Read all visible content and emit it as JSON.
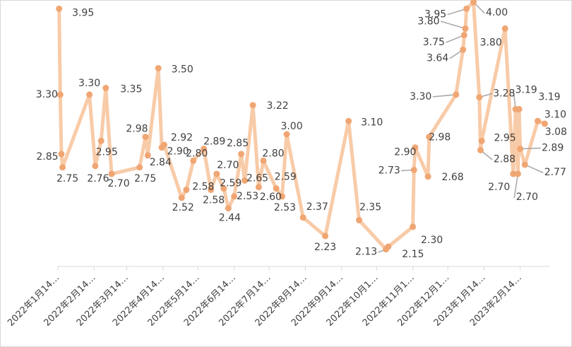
{
  "chart_data": {
    "type": "line",
    "x": [
      "2022-01-15",
      "2022-01-16",
      "2022-01-17",
      "2022-01-18",
      "2022-02-10",
      "2022-02-15",
      "2022-02-20",
      "2022-02-24",
      "2022-03-01",
      "2022-03-25",
      "2022-03-30",
      "2022-04-01",
      "2022-04-10",
      "2022-04-13",
      "2022-04-15",
      "2022-04-30",
      "2022-05-04",
      "2022-05-10",
      "2022-05-19",
      "2022-05-25",
      "2022-05-30",
      "2022-06-05",
      "2022-06-09",
      "2022-06-14",
      "2022-06-20",
      "2022-06-23",
      "2022-06-30",
      "2022-07-05",
      "2022-07-09",
      "2022-07-20",
      "2022-07-25",
      "2022-07-29",
      "2022-08-12",
      "2022-08-31",
      "2022-09-20",
      "2022-09-29",
      "2022-10-22",
      "2022-10-24",
      "2022-11-14",
      "2022-11-15",
      "2022-11-16",
      "2022-11-27",
      "2022-11-28",
      "2022-12-21",
      "2022-12-27",
      "2022-12-28",
      "2022-12-29",
      "2022-12-30",
      "2023-01-05",
      "2023-01-10",
      "2023-01-11",
      "2023-01-12",
      "2023-02-01",
      "2023-02-08",
      "2023-02-10",
      "2023-02-12",
      "2023-02-13",
      "2023-02-14",
      "2023-02-18",
      "2023-03-01",
      "2023-03-07"
    ],
    "values": [
      3.95,
      3.3,
      2.85,
      2.75,
      3.3,
      2.76,
      2.95,
      3.35,
      2.7,
      2.75,
      2.98,
      2.84,
      3.5,
      2.9,
      2.92,
      2.52,
      2.58,
      2.8,
      2.89,
      2.58,
      2.7,
      2.59,
      2.44,
      2.53,
      2.85,
      2.65,
      3.22,
      2.6,
      2.8,
      2.59,
      2.53,
      3.0,
      2.37,
      2.23,
      3.1,
      2.35,
      2.13,
      2.15,
      2.3,
      2.73,
      2.9,
      2.68,
      2.98,
      3.3,
      3.64,
      3.75,
      3.8,
      3.95,
      4.0,
      3.28,
      2.88,
      2.95,
      3.8,
      2.7,
      3.19,
      2.7,
      3.19,
      2.89,
      2.77,
      3.1,
      3.08
    ],
    "value_labels": [
      "3.95",
      "3.30",
      "2.85",
      "2.75",
      "3.30",
      "2.76",
      "2.95",
      "3.35",
      "2.70",
      "2.75",
      "2.98",
      "2.84",
      "3.50",
      "2.90",
      "2.92",
      "2.52",
      "2.58",
      "2.80",
      "2.89",
      "2.58",
      "2.70",
      "2.59",
      "2.44",
      "2.53",
      "2.85",
      "2.65",
      "3.22",
      "2.60",
      "2.80",
      "2.59",
      "2.53",
      "3.00",
      "2.37",
      "2.23",
      "3.10",
      "2.35",
      "2.13",
      "2.15",
      "2.30",
      "2.73",
      "2.90",
      "2.68",
      "2.98",
      "3.30",
      "3.64",
      "3.75",
      "3.80",
      "3.95",
      "4.00",
      "3.28",
      "2.88",
      "2.95",
      "3.80",
      "2.70",
      "3.19",
      "2.70",
      "3.19",
      "2.89",
      "2.77",
      "3.10",
      "3.08"
    ],
    "color": "#f8cba8",
    "marker_color": "#f0a673",
    "xlim": [
      "2022-01-14",
      "2023-03-11"
    ],
    "ylim": [
      2.0,
      4.0
    ],
    "xticks": [
      {
        "value": "2022-01-14",
        "label": "2022年1月14…"
      },
      {
        "value": "2022-02-14",
        "label": "2022年2月14…"
      },
      {
        "value": "2022-03-14",
        "label": "2022年3月14…"
      },
      {
        "value": "2022-04-14",
        "label": "2022年4月14…"
      },
      {
        "value": "2022-05-14",
        "label": "2022年5月14…"
      },
      {
        "value": "2022-06-14",
        "label": "2022年6月14…"
      },
      {
        "value": "2022-07-14",
        "label": "2022年7月14…"
      },
      {
        "value": "2022-08-14",
        "label": "2022年8月14…"
      },
      {
        "value": "2022-09-14",
        "label": "2022年9月14…"
      },
      {
        "value": "2022-10-14",
        "label": "2022年10月1…"
      },
      {
        "value": "2022-11-14",
        "label": "2022年11月1…"
      },
      {
        "value": "2022-12-14",
        "label": "2022年12月1…"
      },
      {
        "value": "2023-01-14",
        "label": "2023年1月14…"
      },
      {
        "value": "2023-02-14",
        "label": "2023年2月14…"
      }
    ]
  }
}
